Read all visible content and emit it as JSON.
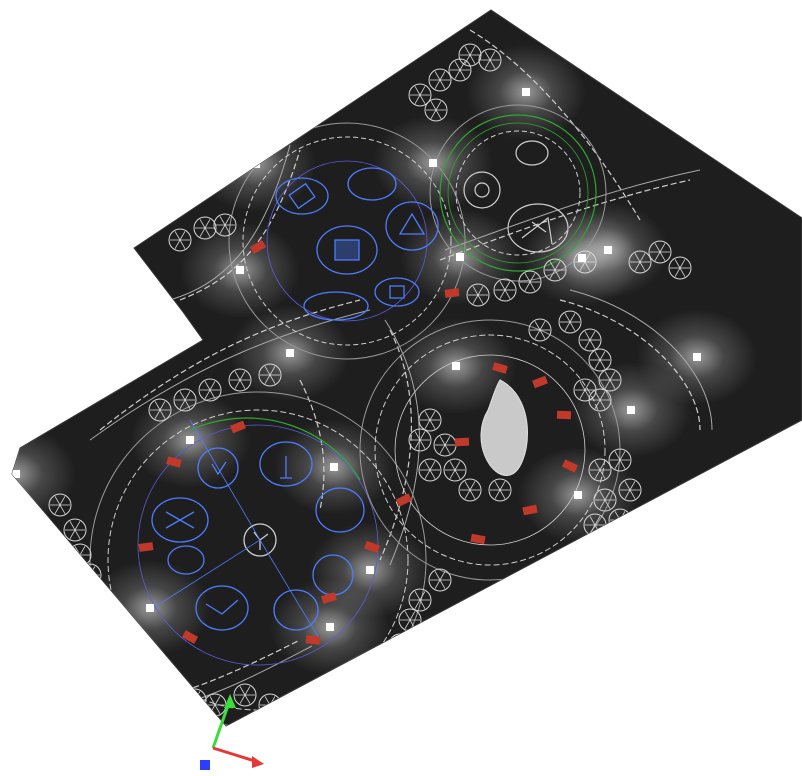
{
  "viewport": {
    "background": "#ffffff",
    "ground_color": "#1e1e1e",
    "linework_color": "#cfcfcf",
    "glow_color": "#ffffff"
  },
  "light_fixtures": {
    "color": "#ffffff",
    "count": 18
  },
  "benches": {
    "color": "#c0392b",
    "count": 24
  },
  "play_equipment": {
    "color": "#4d7cff",
    "groups": [
      "playground-left",
      "playground-top"
    ]
  },
  "planting": {
    "green_ring_color": "#2fa82f",
    "tree_symbol": "tree-circle-icon"
  },
  "axis_gizmo": {
    "x_color": "#e53935",
    "y_color": "#3ddc3d",
    "z_color": "#2b3dff"
  }
}
